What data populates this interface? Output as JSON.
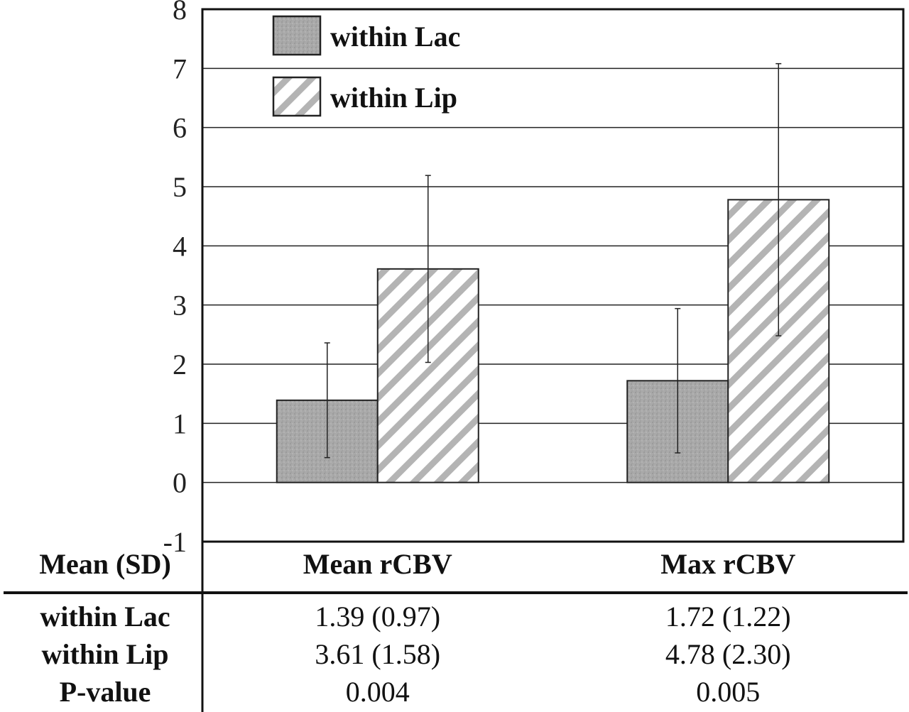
{
  "chart_data": {
    "type": "bar",
    "categories": [
      "Mean rCBV",
      "Max rCBV"
    ],
    "series": [
      {
        "name": "within Lac",
        "values": [
          1.39,
          1.72
        ],
        "sd": [
          0.97,
          1.22
        ],
        "pattern": "gray-stipple"
      },
      {
        "name": "within Lip",
        "values": [
          3.61,
          4.78
        ],
        "sd": [
          1.58,
          2.3
        ],
        "pattern": "diagonal-hatch"
      }
    ],
    "ylim": [
      -1,
      8
    ],
    "yticks": [
      -1,
      0,
      1,
      2,
      3,
      4,
      5,
      6,
      7,
      8
    ],
    "grid": true,
    "legend_position": "top-left",
    "colors": {
      "lac_fill": "#a8a8a8",
      "lip_stripe": "#b4b4b4",
      "frame": "#111111"
    }
  },
  "table": {
    "header": [
      "Mean (SD)",
      "Mean rCBV",
      "Max rCBV"
    ],
    "rows": [
      {
        "label": "within Lac",
        "cells": [
          "1.39 (0.97)",
          "1.72 (1.22)"
        ]
      },
      {
        "label": "within Lip",
        "cells": [
          "3.61 (1.58)",
          "4.78 (2.30)"
        ]
      },
      {
        "label": "P-value",
        "cells": [
          "0.004",
          "0.005"
        ]
      }
    ]
  }
}
